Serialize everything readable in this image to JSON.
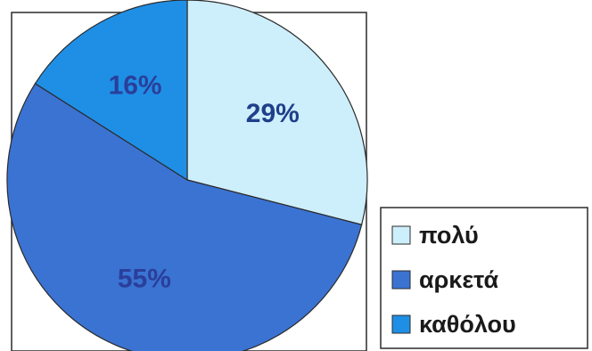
{
  "chart_data": {
    "type": "pie",
    "categories": [
      "πολύ",
      "αρκετά",
      "καθόλου"
    ],
    "values": [
      29,
      55,
      16
    ],
    "data_labels": [
      "29%",
      "55%",
      "16%"
    ],
    "colors": [
      "#cdeefb",
      "#3b73d3",
      "#1f8fe6"
    ],
    "label_colors": [
      "#1f3f8a",
      "#2a3f9a",
      "#2a3f9a"
    ],
    "start_angle_deg": 0,
    "direction": "clockwise",
    "legend_position": "bottom-right",
    "title": ""
  }
}
